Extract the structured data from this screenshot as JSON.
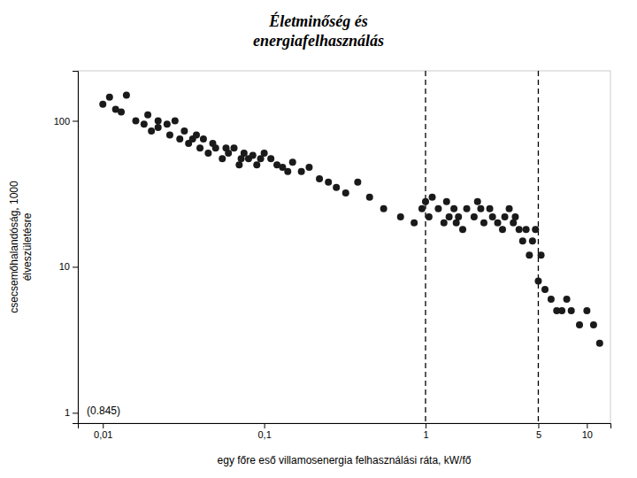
{
  "chart_data": {
    "type": "scatter",
    "title": "Életminőség és\nenergiafelhasználás",
    "ylabel": "csecsemőhalandóság, 1000\nélveszületésre",
    "xlabel": "egy főre eső villamosenergia felhasználási ráta, kW/fő",
    "annotation": "(0.845)",
    "log": true,
    "grid": false,
    "color": "#1a1a1a",
    "marker": "circle",
    "xlim": [
      0.007,
      14
    ],
    "ylim": [
      0.85,
      220
    ],
    "xticks": [
      {
        "value": 0.01,
        "label": "0,01"
      },
      {
        "value": 0.1,
        "label": "0,1"
      },
      1,
      5,
      10
    ],
    "yticks": [
      1,
      10,
      100
    ],
    "vlines": [
      1.0,
      5.0
    ],
    "x": [
      0.01,
      0.011,
      0.012,
      0.013,
      0.014,
      0.016,
      0.018,
      0.019,
      0.02,
      0.022,
      0.022,
      0.025,
      0.026,
      0.028,
      0.03,
      0.032,
      0.034,
      0.036,
      0.038,
      0.04,
      0.042,
      0.045,
      0.048,
      0.05,
      0.055,
      0.058,
      0.06,
      0.065,
      0.07,
      0.072,
      0.075,
      0.08,
      0.085,
      0.09,
      0.095,
      0.1,
      0.11,
      0.12,
      0.13,
      0.14,
      0.15,
      0.17,
      0.19,
      0.22,
      0.25,
      0.28,
      0.32,
      0.38,
      0.45,
      0.55,
      0.7,
      0.85,
      0.95,
      1.0,
      1.05,
      1.1,
      1.2,
      1.3,
      1.35,
      1.4,
      1.5,
      1.55,
      1.6,
      1.7,
      1.8,
      2.0,
      2.1,
      2.2,
      2.3,
      2.5,
      2.6,
      2.8,
      3.0,
      3.1,
      3.3,
      3.5,
      3.6,
      3.8,
      4.0,
      4.2,
      4.4,
      4.6,
      4.8,
      5.0,
      5.2,
      5.5,
      6.0,
      6.5,
      7.0,
      7.5,
      8.0,
      9.0,
      10.0,
      11.0,
      12.0
    ],
    "values": [
      130,
      145,
      120,
      115,
      150,
      100,
      95,
      110,
      85,
      90,
      100,
      95,
      80,
      100,
      75,
      85,
      70,
      75,
      80,
      65,
      75,
      60,
      70,
      65,
      55,
      65,
      60,
      65,
      50,
      55,
      60,
      55,
      58,
      50,
      55,
      60,
      55,
      50,
      48,
      45,
      52,
      45,
      48,
      40,
      38,
      35,
      32,
      38,
      30,
      25,
      22,
      20,
      25,
      28,
      22,
      30,
      25,
      20,
      28,
      22,
      25,
      20,
      22,
      18,
      25,
      22,
      28,
      25,
      20,
      25,
      22,
      20,
      18,
      22,
      25,
      20,
      22,
      18,
      15,
      18,
      12,
      15,
      18,
      8,
      12,
      7,
      6,
      5,
      5,
      6,
      5,
      4,
      5,
      4,
      3
    ]
  }
}
